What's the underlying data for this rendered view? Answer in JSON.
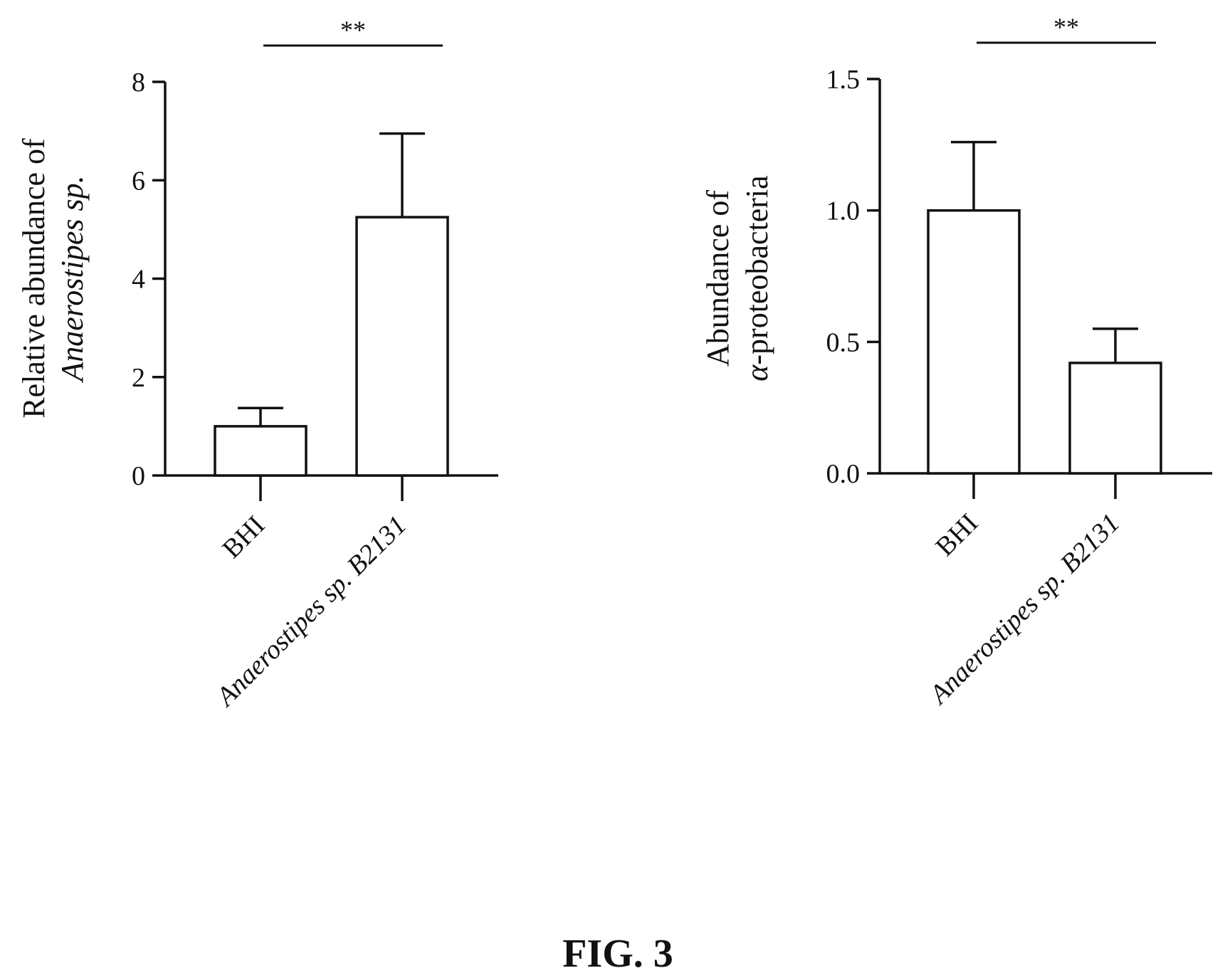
{
  "figure": {
    "caption": "FIG. 3"
  },
  "chart_data": [
    {
      "type": "bar",
      "categories": [
        "BHI",
        "Anaerostipes sp. B2131"
      ],
      "values": [
        1.0,
        5.25
      ],
      "errors": [
        0.37,
        1.7
      ],
      "ylabel_line1": "Relative abundance of",
      "ylabel_line2": "Anaerostipes sp.",
      "ylim": [
        0,
        8
      ],
      "yticks": [
        0,
        2,
        4,
        6,
        8
      ],
      "ytick_labels": [
        "0",
        "2",
        "4",
        "6",
        "8"
      ],
      "significance": "**",
      "grid": false
    },
    {
      "type": "bar",
      "categories": [
        "BHI",
        "Anaerostipes sp. B2131"
      ],
      "values": [
        1.0,
        0.42
      ],
      "errors": [
        0.26,
        0.13
      ],
      "ylabel_line1": "Abundance of",
      "ylabel_line2_symbol": "α",
      "ylabel_line2_rest": "-proteobacteria",
      "ylim": [
        0,
        1.5
      ],
      "yticks": [
        0,
        0.5,
        1.0,
        1.5
      ],
      "ytick_labels": [
        "0.0",
        "0.5",
        "1.0",
        "1.5"
      ],
      "significance": "**",
      "grid": false
    }
  ]
}
